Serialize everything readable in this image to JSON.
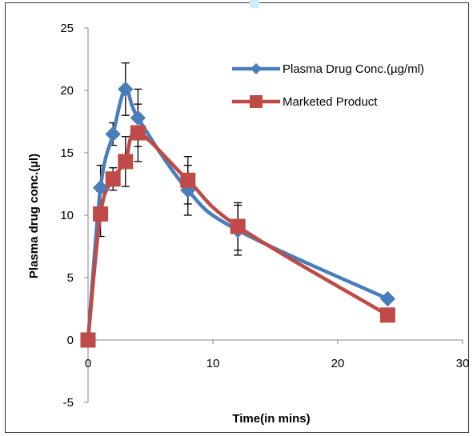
{
  "chart_data": {
    "type": "line",
    "title": "",
    "xlabel": "Time(in mins)",
    "ylabel": "Plasma drug conc.(µl)",
    "xlim": [
      0,
      30
    ],
    "ylim": [
      -5,
      25
    ],
    "xticks": [
      0,
      10,
      20,
      30
    ],
    "yticks": [
      -5,
      0,
      5,
      10,
      15,
      20,
      25
    ],
    "grid": false,
    "legend_position": "top-right",
    "series": [
      {
        "name": "Plasma Drug Conc.(µg/ml)",
        "color": "#4a7ebb",
        "marker": "diamond",
        "x": [
          0,
          1,
          2,
          3,
          4,
          8,
          12,
          24
        ],
        "y": [
          0,
          12.2,
          16.5,
          20.1,
          17.8,
          12.0,
          8.8,
          3.3
        ],
        "error": [
          0,
          1.8,
          0.9,
          2.1,
          2.3,
          2.0,
          2.0,
          0
        ]
      },
      {
        "name": "Marketed Product",
        "color": "#be4b48",
        "marker": "square",
        "x": [
          0,
          1,
          2,
          3,
          4,
          8,
          12,
          24
        ],
        "y": [
          0,
          10.1,
          12.9,
          14.3,
          16.6,
          12.8,
          9.1,
          2.0
        ],
        "error": [
          0,
          1.8,
          0.9,
          2.0,
          2.3,
          1.9,
          1.9,
          0
        ]
      }
    ]
  }
}
